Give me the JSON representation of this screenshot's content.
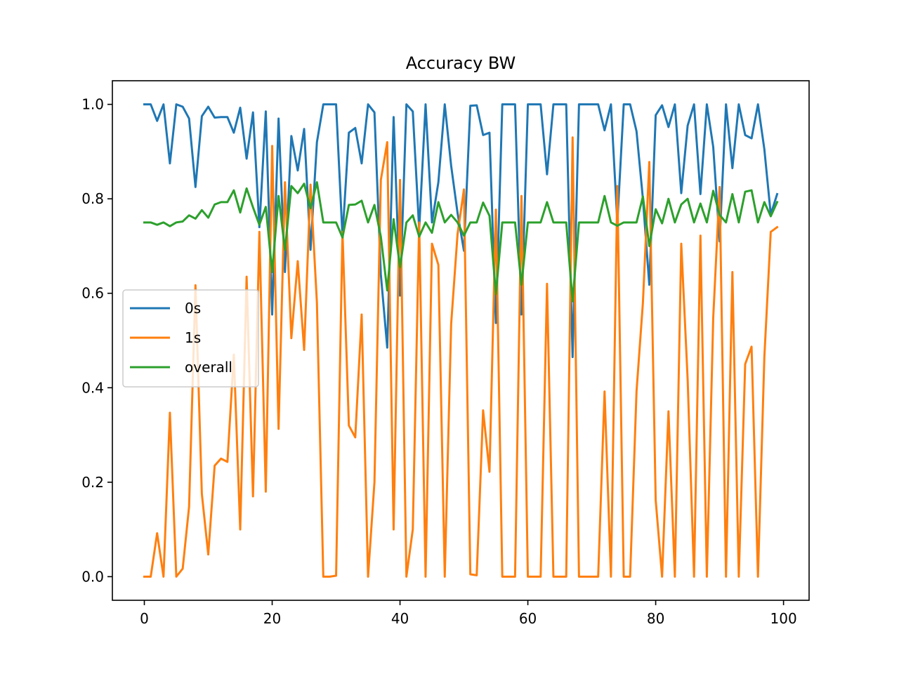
{
  "chart_data": {
    "type": "line",
    "title": "Accuracy BW",
    "xlabel": "",
    "ylabel": "",
    "xlim": [
      -5,
      104
    ],
    "ylim": [
      -0.05,
      1.05
    ],
    "xticks": [
      0,
      20,
      40,
      60,
      80,
      100
    ],
    "xtick_labels": [
      "0",
      "20",
      "40",
      "60",
      "80",
      "100"
    ],
    "yticks": [
      0.0,
      0.2,
      0.4,
      0.6,
      0.8,
      1.0
    ],
    "ytick_labels": [
      "0.0",
      "0.2",
      "0.4",
      "0.6",
      "0.8",
      "1.0"
    ],
    "grid": false,
    "legend_position": "center-left",
    "x": [
      0,
      1,
      2,
      3,
      4,
      5,
      6,
      7,
      8,
      9,
      10,
      11,
      12,
      13,
      14,
      15,
      16,
      17,
      18,
      19,
      20,
      21,
      22,
      23,
      24,
      25,
      26,
      27,
      28,
      29,
      30,
      31,
      32,
      33,
      34,
      35,
      36,
      37,
      38,
      39,
      40,
      41,
      42,
      43,
      44,
      45,
      46,
      47,
      48,
      49,
      50,
      51,
      52,
      53,
      54,
      55,
      56,
      57,
      58,
      59,
      60,
      61,
      62,
      63,
      64,
      65,
      66,
      67,
      68,
      69,
      70,
      71,
      72,
      73,
      74,
      75,
      76,
      77,
      78,
      79,
      80,
      81,
      82,
      83,
      84,
      85,
      86,
      87,
      88,
      89,
      90,
      91,
      92,
      93,
      94,
      95,
      96,
      97,
      98,
      99
    ],
    "series": [
      {
        "name": "0s",
        "color": "#1f77b4",
        "values": [
          1.0,
          1.0,
          0.965,
          1.0,
          0.875,
          1.0,
          0.995,
          0.97,
          0.825,
          0.975,
          0.995,
          0.972,
          0.973,
          0.973,
          0.94,
          0.993,
          0.885,
          0.983,
          0.74,
          0.985,
          0.555,
          0.97,
          0.645,
          0.933,
          0.86,
          0.948,
          0.692,
          0.92,
          1.0,
          1.0,
          1.0,
          0.72,
          0.94,
          0.95,
          0.875,
          1.0,
          0.983,
          0.64,
          0.485,
          0.973,
          0.595,
          1.0,
          0.985,
          0.735,
          1.0,
          0.75,
          0.835,
          1.0,
          0.87,
          0.77,
          0.69,
          0.997,
          0.998,
          0.935,
          0.94,
          0.537,
          1.0,
          1.0,
          1.0,
          0.555,
          1.0,
          1.0,
          1.0,
          0.852,
          1.0,
          1.0,
          1.0,
          0.465,
          1.0,
          1.0,
          1.0,
          1.0,
          0.945,
          1.0,
          0.75,
          1.0,
          1.0,
          0.943,
          0.8,
          0.618,
          0.977,
          0.998,
          0.952,
          1.0,
          0.812,
          0.955,
          1.0,
          0.81,
          1.0,
          0.91,
          0.71,
          1.0,
          0.865,
          1.0,
          0.935,
          0.928,
          1.0,
          0.905,
          0.767,
          0.81
        ]
      },
      {
        "name": "1s",
        "color": "#ff7f0e",
        "values": [
          0.0,
          0.0,
          0.092,
          0.0,
          0.347,
          0.0,
          0.017,
          0.148,
          0.617,
          0.175,
          0.047,
          0.235,
          0.25,
          0.243,
          0.47,
          0.1,
          0.635,
          0.17,
          0.73,
          0.18,
          0.912,
          0.313,
          0.835,
          0.505,
          0.668,
          0.48,
          0.83,
          0.58,
          0.0,
          0.0,
          0.002,
          0.73,
          0.32,
          0.295,
          0.555,
          0.0,
          0.2,
          0.84,
          0.92,
          0.1,
          0.84,
          0.0,
          0.1,
          0.75,
          0.0,
          0.705,
          0.66,
          0.0,
          0.535,
          0.725,
          0.82,
          0.005,
          0.003,
          0.352,
          0.222,
          0.777,
          0.0,
          0.0,
          0.0,
          0.806,
          0.0,
          0.0,
          0.0,
          0.62,
          0.0,
          0.0,
          0.0,
          0.93,
          0.0,
          0.0,
          0.0,
          0.0,
          0.392,
          0.0,
          0.827,
          0.0,
          0.0,
          0.392,
          0.58,
          0.878,
          0.162,
          0.0,
          0.35,
          0.0,
          0.705,
          0.418,
          0.0,
          0.722,
          0.0,
          0.548,
          0.825,
          0.0,
          0.645,
          0.0,
          0.45,
          0.487,
          0.0,
          0.465,
          0.73,
          0.74
        ]
      },
      {
        "name": "overall",
        "color": "#2ca02c",
        "values": [
          0.75,
          0.75,
          0.745,
          0.75,
          0.742,
          0.75,
          0.752,
          0.765,
          0.758,
          0.776,
          0.76,
          0.788,
          0.793,
          0.793,
          0.818,
          0.771,
          0.822,
          0.782,
          0.745,
          0.783,
          0.645,
          0.806,
          0.692,
          0.827,
          0.812,
          0.832,
          0.78,
          0.835,
          0.75,
          0.75,
          0.75,
          0.718,
          0.787,
          0.788,
          0.796,
          0.75,
          0.787,
          0.72,
          0.606,
          0.757,
          0.655,
          0.75,
          0.765,
          0.72,
          0.75,
          0.728,
          0.793,
          0.75,
          0.766,
          0.75,
          0.722,
          0.75,
          0.75,
          0.792,
          0.764,
          0.598,
          0.75,
          0.75,
          0.75,
          0.618,
          0.75,
          0.75,
          0.75,
          0.793,
          0.75,
          0.75,
          0.75,
          0.583,
          0.75,
          0.75,
          0.75,
          0.75,
          0.806,
          0.75,
          0.743,
          0.75,
          0.75,
          0.75,
          0.805,
          0.7,
          0.778,
          0.748,
          0.8,
          0.75,
          0.788,
          0.8,
          0.75,
          0.79,
          0.75,
          0.817,
          0.766,
          0.75,
          0.81,
          0.75,
          0.815,
          0.818,
          0.75,
          0.793,
          0.763,
          0.793
        ]
      }
    ]
  }
}
